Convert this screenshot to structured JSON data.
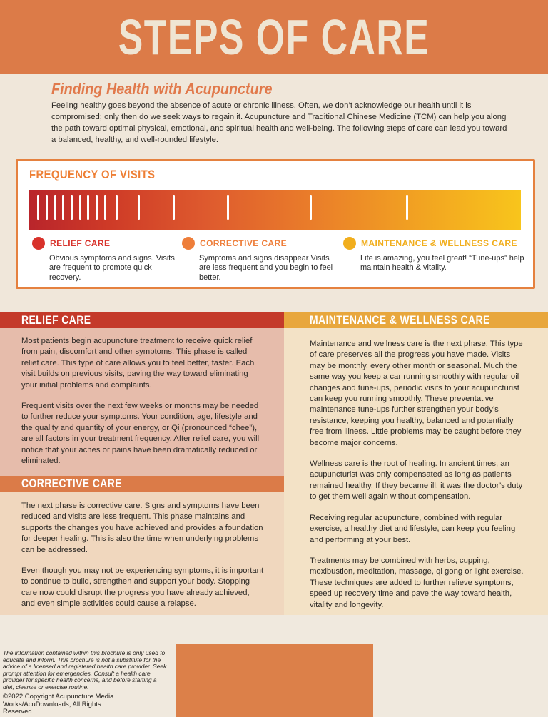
{
  "header": {
    "title": "STEPS OF CARE"
  },
  "intro": {
    "heading": "Finding Health with Acupuncture",
    "body": "Feeling healthy goes beyond the absence of acute or chronic illness. Often, we don’t acknowledge our health until it is compromised; only then do we seek ways to regain it. Acupuncture and Traditional Chinese Medicine (TCM) can help you along the path toward optimal physical, emotional, and spiritual health and well-being. The following steps of care can lead you toward a balanced, healthy, and well-rounded lifestyle."
  },
  "frequency": {
    "title": "FREQUENCY OF VISITS",
    "bar": {
      "gradient_start_color": "#B9252B",
      "gradient_end_color": "#F8C51C",
      "tick_positions_pct": [
        1.6,
        3.3,
        5.1,
        6.7,
        8.4,
        10.2,
        11.8,
        13.5,
        15.2,
        17.6,
        22.1,
        29.2,
        40.2,
        57.0,
        76.6
      ]
    },
    "legend": [
      {
        "name": "RELIEF CARE",
        "color": "#D8322B",
        "description": "Obvious symptoms and signs. Visits are frequent to promote quick recovery."
      },
      {
        "name": "CORRECTIVE CARE",
        "color": "#EE7E3A",
        "description": "Symptoms and signs disappear Visits are less frequent and you begin to feel better."
      },
      {
        "name": "MAINTENANCE & WELLNESS CARE",
        "color": "#F1AE1D",
        "description": "Life is amazing, you feel great! “Tune-ups” help maintain health & vitality."
      }
    ]
  },
  "sections": {
    "relief": {
      "title": "RELIEF CARE",
      "paragraphs": [
        "Most patients begin acupuncture treatment to receive quick relief from pain, discomfort and other symptoms. This phase is called relief care. This type of care allows you to feel better, faster. Each visit builds on previous visits, paving the way toward eliminating your initial problems and complaints.",
        "Frequent visits over the next few weeks or months may be needed to further reduce your symptoms. Your condition, age, lifestyle and the quality and quantity of your energy, or Qi (pronounced “chee”), are all factors in your treatment frequency. After relief care, you will notice that your aches or pains have been dramatically reduced or eliminated."
      ]
    },
    "corrective": {
      "title": "CORRECTIVE CARE",
      "paragraphs": [
        "The next phase is corrective care. Signs and symptoms have been reduced and visits are less frequent. This phase maintains and supports the changes you have achieved and provides a foundation for deeper healing. This is also the time when underlying problems can be addressed.",
        "Even though you may not be experiencing symptoms, it is important to continue to build, strengthen and support your body. Stopping care now could disrupt the progress you have already achieved, and even simple activities could cause a relapse."
      ]
    },
    "maintenance": {
      "title": "MAINTENANCE & WELLNESS CARE",
      "paragraphs": [
        "Maintenance and wellness care is the next phase. This type of care preserves all the progress you have made. Visits may be monthly, every other month or seasonal. Much the same way you keep a car running smoothly with regular oil changes and tune-ups, periodic visits to your acupuncturist can keep you running smoothly. These preventative maintenance tune-ups further strengthen your body’s resistance, keeping you healthy, balanced and potentially free from illness. Little problems may be caught before they become major concerns.",
        "Wellness care is the root of healing. In ancient times, an acupuncturist was only compensated as long as patients remained healthy. If they became ill, it was the doctor’s duty to get them well again without compensation.",
        "Receiving regular acupuncture, combined with regular exercise, a healthy diet and lifestyle, can keep you feeling and performing at your best.",
        "Treatments may be combined with herbs, cupping, moxibustion, meditation, massage, qi gong or light exercise. These techniques are added to further relieve symptoms, speed up recovery time and pave the way toward health, vitality and longevity."
      ]
    }
  },
  "footer": {
    "disclaimer": "The information contained within this brochure is only used to educate and inform. This brochure is not a substitute for the advice of a licensed and registered health care provider. Seek prompt attention for emergencies. Consult a health care provider for specific health concerns, and before starting a diet, cleanse or exercise routine.",
    "copyright": "©2022 Copyright Acupuncture Media Works/AcuDownloads, All Rights Reserved."
  },
  "colors": {
    "banner_orange": "#DC7B48",
    "cream_background": "#F0E7DA",
    "relief_red": "#C43A2A",
    "relief_body_pink": "#E6BCAB",
    "corrective_orange": "#DB7B48",
    "corrective_body_peach": "#F0D7BE",
    "maintenance_gold": "#E8A73D",
    "maintenance_body_tan": "#F3E2C6",
    "footer_cream": "#F0E9DE"
  }
}
